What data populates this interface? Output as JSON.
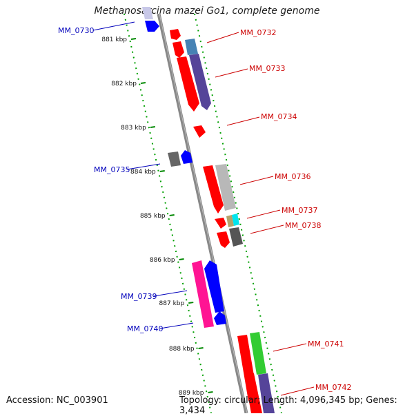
{
  "title": "Methanosarcina mazei Go1, complete genome",
  "footer": {
    "accession": "Accession: NC_003901",
    "topology": "Topology: circular; Length: 4,096,345 bp; Genes: 3,434"
  },
  "ticks": [
    "881 kbp",
    "882 kbp",
    "883 kbp",
    "884 kbp",
    "885 kbp",
    "886 kbp",
    "887 kbp",
    "888 kbp",
    "889 kbp"
  ],
  "labels": [
    {
      "text": "MM_0730",
      "strand": "reverse"
    },
    {
      "text": "MM_0732",
      "strand": "forward"
    },
    {
      "text": "MM_0733",
      "strand": "forward"
    },
    {
      "text": "MM_0734",
      "strand": "forward"
    },
    {
      "text": "MM_0735",
      "strand": "reverse"
    },
    {
      "text": "MM_0736",
      "strand": "forward"
    },
    {
      "text": "MM_0737",
      "strand": "forward"
    },
    {
      "text": "MM_0738",
      "strand": "forward"
    },
    {
      "text": "MM_0739",
      "strand": "reverse"
    },
    {
      "text": "MM_0740",
      "strand": "reverse"
    },
    {
      "text": "MM_0741",
      "strand": "forward"
    },
    {
      "text": "MM_0742",
      "strand": "forward"
    }
  ],
  "colors": {
    "forward_label": "#cc0000",
    "reverse_label": "#0000bb",
    "backbone": "#888888",
    "tick": "#008800",
    "forward_cds": "#ff0000",
    "reverse_cds": "#0000ff"
  }
}
